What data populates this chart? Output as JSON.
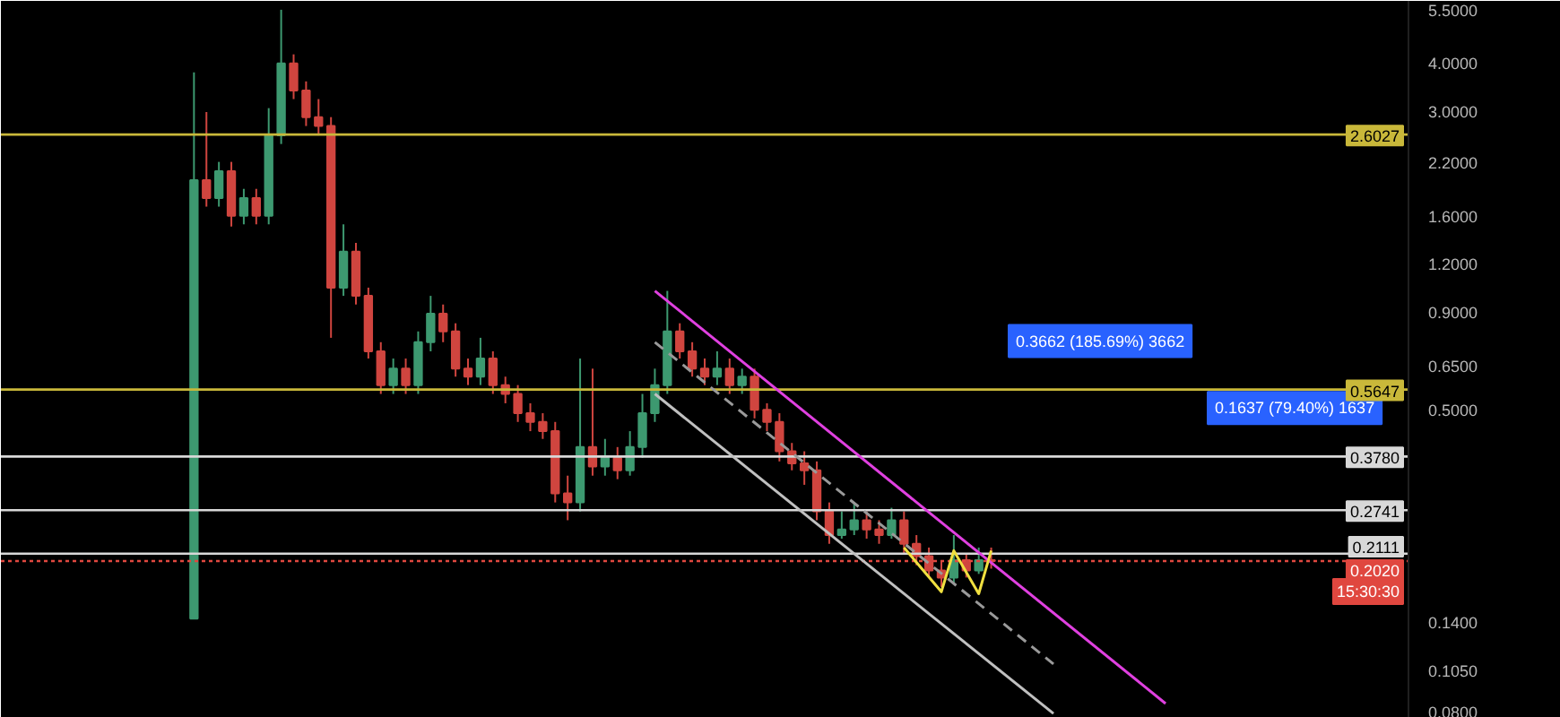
{
  "chart_data": {
    "type": "candlestick",
    "categories": [
      null,
      null,
      null,
      null,
      null,
      null,
      null,
      null,
      null,
      null,
      null,
      null,
      null,
      null,
      null,
      null,
      null,
      null,
      null,
      null,
      null,
      null,
      null,
      null,
      null,
      null,
      null,
      null,
      null,
      null,
      null,
      null,
      null,
      null,
      null,
      null,
      null,
      null,
      null,
      null,
      null,
      null,
      null,
      null,
      null,
      null,
      null,
      null,
      null,
      null,
      null,
      null,
      null,
      null,
      null,
      null,
      null,
      null,
      null,
      null,
      null,
      null,
      null,
      null,
      null,
      null,
      null,
      null,
      null,
      null,
      null,
      null,
      null,
      null,
      null,
      null,
      null,
      null,
      null,
      null,
      null,
      null,
      null,
      null,
      null,
      null,
      null,
      null,
      null,
      null,
      null,
      null,
      null,
      null,
      null,
      null,
      null,
      null,
      null,
      null,
      null,
      null,
      null,
      null,
      null,
      null,
      null,
      null,
      null,
      null,
      null,
      null,
      null
    ],
    "ohlc": [
      null,
      null,
      null,
      null,
      null,
      null,
      null,
      null,
      null,
      null,
      null,
      null,
      null,
      null,
      null,
      [
        0.143,
        3.78,
        0.143,
        1.98
      ],
      [
        1.98,
        2.98,
        1.69,
        1.78
      ],
      [
        1.78,
        2.21,
        1.69,
        2.09
      ],
      [
        2.09,
        2.21,
        1.5,
        1.6
      ],
      [
        1.6,
        1.88,
        1.52,
        1.78
      ],
      [
        1.78,
        1.88,
        1.52,
        1.6
      ],
      [
        1.6,
        3.05,
        1.52,
        2.59
      ],
      [
        2.59,
        5.5,
        2.46,
        3.99
      ],
      [
        3.99,
        4.21,
        3.22,
        3.39
      ],
      [
        3.39,
        3.58,
        2.74,
        2.89
      ],
      [
        2.89,
        3.22,
        2.59,
        2.74
      ],
      [
        2.74,
        2.89,
        0.77,
        1.04
      ],
      [
        1.04,
        1.52,
        0.99,
        1.29
      ],
      [
        1.29,
        1.36,
        0.94,
        0.99
      ],
      [
        0.99,
        1.04,
        0.68,
        0.71
      ],
      [
        0.71,
        0.75,
        0.55,
        0.58
      ],
      [
        0.58,
        0.68,
        0.55,
        0.64
      ],
      [
        0.64,
        0.68,
        0.55,
        0.58
      ],
      [
        0.58,
        0.8,
        0.55,
        0.75
      ],
      [
        0.75,
        0.99,
        0.71,
        0.89
      ],
      [
        0.89,
        0.94,
        0.75,
        0.8
      ],
      [
        0.8,
        0.84,
        0.61,
        0.64
      ],
      [
        0.64,
        0.68,
        0.58,
        0.61
      ],
      [
        0.61,
        0.77,
        0.58,
        0.68
      ],
      [
        0.68,
        0.71,
        0.55,
        0.58
      ],
      [
        0.58,
        0.61,
        0.52,
        0.55
      ],
      [
        0.55,
        0.58,
        0.465,
        0.49
      ],
      [
        0.49,
        0.52,
        0.44,
        0.465
      ],
      [
        0.465,
        0.49,
        0.42,
        0.44
      ],
      [
        0.44,
        0.465,
        0.287,
        0.303
      ],
      [
        0.303,
        0.337,
        0.258,
        0.287
      ],
      [
        0.287,
        0.68,
        0.272,
        0.4
      ],
      [
        0.4,
        0.64,
        0.337,
        0.356
      ],
      [
        0.356,
        0.42,
        0.337,
        0.375
      ],
      [
        0.375,
        0.4,
        0.33,
        0.348
      ],
      [
        0.348,
        0.44,
        0.337,
        0.4
      ],
      [
        0.4,
        0.55,
        0.375,
        0.49
      ],
      [
        0.49,
        0.64,
        0.465,
        0.58
      ],
      [
        0.58,
        1.02,
        0.55,
        0.8
      ],
      [
        0.8,
        0.84,
        0.68,
        0.71
      ],
      [
        0.71,
        0.75,
        0.61,
        0.64
      ],
      [
        0.64,
        0.68,
        0.58,
        0.61
      ],
      [
        0.61,
        0.71,
        0.58,
        0.64
      ],
      [
        0.64,
        0.68,
        0.55,
        0.58
      ],
      [
        0.58,
        0.64,
        0.55,
        0.61
      ],
      [
        0.61,
        0.64,
        0.475,
        0.5
      ],
      [
        0.5,
        0.52,
        0.44,
        0.465
      ],
      [
        0.465,
        0.49,
        0.367,
        0.39
      ],
      [
        0.39,
        0.41,
        0.348,
        0.363
      ],
      [
        0.363,
        0.39,
        0.319,
        0.348
      ],
      [
        0.348,
        0.367,
        0.258,
        0.272
      ],
      [
        0.272,
        0.287,
        0.224,
        0.236
      ],
      [
        0.236,
        0.272,
        0.231,
        0.244
      ],
      [
        0.244,
        0.287,
        0.236,
        0.258
      ],
      [
        0.258,
        0.272,
        0.231,
        0.244
      ],
      [
        0.244,
        0.258,
        0.224,
        0.236
      ],
      [
        0.236,
        0.278,
        0.231,
        0.258
      ],
      [
        0.258,
        0.272,
        0.212,
        0.224
      ],
      [
        0.224,
        0.236,
        0.197,
        0.208
      ],
      [
        0.208,
        0.219,
        0.183,
        0.191
      ],
      [
        0.191,
        0.201,
        0.173,
        0.183
      ],
      [
        0.183,
        0.236,
        0.177,
        0.203
      ],
      [
        0.203,
        0.212,
        0.183,
        0.191
      ],
      [
        0.191,
        0.219,
        0.187,
        0.203
      ],
      [
        0.203,
        0.219,
        0.193,
        0.202
      ],
      null,
      null,
      null,
      null,
      null,
      null,
      null,
      null,
      null,
      null,
      null,
      null,
      null,
      null,
      null,
      null,
      null,
      null,
      null,
      null,
      null,
      null,
      null,
      null,
      null,
      null,
      null,
      null,
      null,
      null,
      null,
      null,
      null
    ],
    "colors": [
      null,
      null,
      null,
      null,
      null,
      null,
      null,
      null,
      null,
      null,
      null,
      null,
      null,
      null,
      null,
      "#3d9970",
      "#d0453f",
      "#3d9970",
      "#d0453f",
      "#3d9970",
      "#d0453f",
      "#3d9970",
      "#3d9970",
      "#d0453f",
      "#d0453f",
      "#d0453f",
      "#d0453f",
      "#3d9970",
      "#d0453f",
      "#d0453f",
      "#d0453f",
      "#3d9970",
      "#d0453f",
      "#3d9970",
      "#3d9970",
      "#d0453f",
      "#d0453f",
      "#d0453f",
      "#3d9970",
      "#d0453f",
      "#d0453f",
      "#d0453f",
      "#d0453f",
      "#d0453f",
      "#d0453f",
      "#d0453f",
      "#3d9970",
      "#d0453f",
      "#3d9970",
      "#d0453f",
      "#3d9970",
      "#3d9970",
      "#3d9970",
      "#3d9970",
      "#d0453f",
      "#d0453f",
      "#d0453f",
      "#3d9970",
      "#d0453f",
      "#3d9970",
      "#d0453f",
      "#d0453f",
      "#d0453f",
      "#d0453f",
      "#d0453f",
      "#d0453f",
      "#d0453f",
      "#3d9970",
      "#3d9970",
      "#d0453f",
      "#d0453f",
      "#3d9970",
      "#d0453f",
      "#d0453f",
      "#d0453f",
      "#d0453f",
      "#3d9970",
      "#d0453f",
      "#3d9970",
      "#d0453f",
      null,
      null,
      null,
      null,
      null,
      null,
      null,
      null,
      null,
      null,
      null,
      null,
      null,
      null,
      null,
      null,
      null,
      null,
      null,
      null,
      null,
      null,
      null,
      null,
      null,
      null,
      null,
      null,
      null,
      null,
      null,
      null,
      null
    ],
    "series": [
      {
        "type": "line",
        "color": "#e040e0",
        "values": [
          null,
          null,
          null,
          null,
          null,
          null,
          null,
          null,
          null,
          null,
          null,
          null,
          null,
          null,
          null,
          null,
          null,
          null,
          null,
          null,
          null,
          null,
          null,
          null,
          null,
          null,
          null,
          null,
          null,
          null,
          null,
          null,
          null,
          null,
          null,
          null,
          null,
          null,
          null,
          null,
          null,
          null,
          null,
          null,
          null,
          null,
          null,
          null,
          null,
          null,
          null,
          null,
          1.02,
          null,
          null,
          null,
          null,
          null,
          null,
          null,
          null,
          null,
          null,
          null,
          null,
          null,
          null,
          null,
          null,
          null,
          null,
          null,
          null,
          null,
          null,
          null,
          null,
          null,
          null,
          null,
          null,
          null,
          null,
          null,
          null,
          null,
          null,
          null,
          null,
          null,
          null,
          null,
          null,
          0.086,
          null,
          null,
          null,
          null,
          null,
          null,
          null,
          null,
          null,
          null,
          null,
          null,
          null,
          null,
          null,
          null,
          null,
          null,
          null
        ]
      },
      {
        "type": "line",
        "color": "#c0c0c0",
        "values": [
          null,
          null,
          null,
          null,
          null,
          null,
          null,
          null,
          null,
          null,
          null,
          null,
          null,
          null,
          null,
          null,
          null,
          null,
          null,
          null,
          null,
          null,
          null,
          null,
          null,
          null,
          null,
          null,
          null,
          null,
          null,
          null,
          null,
          null,
          null,
          null,
          null,
          null,
          null,
          null,
          null,
          null,
          null,
          null,
          null,
          null,
          null,
          null,
          null,
          null,
          null,
          null,
          0.55,
          null,
          null,
          null,
          null,
          null,
          null,
          null,
          null,
          null,
          null,
          null,
          null,
          null,
          null,
          null,
          null,
          null,
          null,
          null,
          null,
          null,
          null,
          null,
          null,
          null,
          null,
          null,
          null,
          null,
          null,
          null,
          0.081,
          null,
          null,
          null,
          null,
          null,
          null,
          null,
          null,
          null,
          null,
          null,
          null,
          null,
          null,
          null,
          null,
          null,
          null,
          null,
          null,
          null,
          null,
          null,
          null,
          null,
          null,
          null,
          null
        ]
      },
      {
        "type": "line",
        "color": "#9a9a9a",
        "line_style": "dashed",
        "values": [
          null,
          null,
          null,
          null,
          null,
          null,
          null,
          null,
          null,
          null,
          null,
          null,
          null,
          null,
          null,
          null,
          null,
          null,
          null,
          null,
          null,
          null,
          null,
          null,
          null,
          null,
          null,
          null,
          null,
          null,
          null,
          null,
          null,
          null,
          null,
          null,
          null,
          null,
          null,
          null,
          null,
          null,
          null,
          null,
          null,
          null,
          null,
          null,
          null,
          null,
          null,
          null,
          0.75,
          null,
          null,
          null,
          null,
          null,
          null,
          null,
          null,
          null,
          null,
          null,
          null,
          null,
          null,
          null,
          null,
          null,
          null,
          null,
          null,
          null,
          null,
          null,
          null,
          null,
          null,
          null,
          null,
          null,
          null,
          null,
          0.109,
          null,
          null,
          null,
          null,
          null,
          null,
          null,
          null,
          null,
          null,
          null,
          null,
          null,
          null,
          null,
          null,
          null,
          null,
          null,
          null,
          null,
          null,
          null,
          null,
          null,
          null,
          null,
          null
        ]
      },
      {
        "type": "line",
        "color": "#f0e040",
        "values": [
          null,
          null,
          null,
          null,
          null,
          null,
          null,
          null,
          null,
          null,
          null,
          null,
          null,
          null,
          null,
          null,
          null,
          null,
          null,
          null,
          null,
          null,
          null,
          null,
          null,
          null,
          null,
          null,
          null,
          null,
          null,
          null,
          null,
          null,
          null,
          null,
          null,
          null,
          null,
          null,
          null,
          null,
          null,
          null,
          null,
          null,
          null,
          null,
          null,
          null,
          null,
          null,
          null,
          null,
          null,
          null,
          null,
          null,
          null,
          null,
          null,
          null,
          null,
          null,
          null,
          null,
          null,
          null,
          null,
          null,
          null,
          null,
          0.219,
          null,
          null,
          0.168,
          0.215,
          null,
          0.166,
          0.215,
          null,
          null,
          null,
          null,
          null,
          null,
          null,
          null,
          null,
          null,
          null,
          null,
          null,
          null,
          null,
          null,
          null,
          null,
          null,
          null,
          null,
          null,
          null,
          null,
          null,
          null,
          null,
          null,
          null,
          null,
          null,
          null,
          null
        ]
      }
    ],
    "log": true,
    "ylim": [
      0.0789,
      5.8
    ],
    "yticks": [
      {
        "value": 5.5,
        "label": "5.5000"
      },
      {
        "value": 4.0,
        "label": "4.0000"
      },
      {
        "value": 3.0,
        "label": "3.0000"
      },
      {
        "value": 2.2,
        "label": "2.2000"
      },
      {
        "value": 1.6,
        "label": "1.6000"
      },
      {
        "value": 1.2,
        "label": "1.2000"
      },
      {
        "value": 0.9,
        "label": "0.9000"
      },
      {
        "value": 0.65,
        "label": "0.6500"
      },
      {
        "value": 0.5,
        "label": "0.5000"
      },
      {
        "value": 0.14,
        "label": "0.1400"
      },
      {
        "value": 0.105,
        "label": "0.1050"
      },
      {
        "value": 0.08,
        "label": "0.0800"
      }
    ],
    "tick_labels": "y",
    "grid": false,
    "ref_lines": [
      {
        "axis": "y",
        "value": 2.6027,
        "label": "2.6027",
        "color": "#c9b83a"
      },
      {
        "axis": "y",
        "value": 0.5647,
        "label": "0.5647",
        "color": "#c9b83a"
      },
      {
        "axis": "y",
        "value": 0.378,
        "label": "0.3780",
        "color": "#d8d8d8"
      },
      {
        "axis": "y",
        "value": 0.2741,
        "label": "0.2741",
        "color": "#d8d8d8"
      },
      {
        "axis": "y",
        "value": 0.2111,
        "label": "0.2111",
        "color": "#d8d8d8"
      },
      {
        "axis": "y",
        "value": 0.202,
        "label": "0.2020",
        "color": "#e0473f",
        "line_style": "dotted"
      }
    ],
    "annotations": [
      {
        "text": "0.3662 (185.69%) 3662",
        "y": 0.5647
      },
      {
        "text": "0.1637 (79.40%) 1637",
        "y": 0.378
      },
      "15:30:30"
    ]
  }
}
